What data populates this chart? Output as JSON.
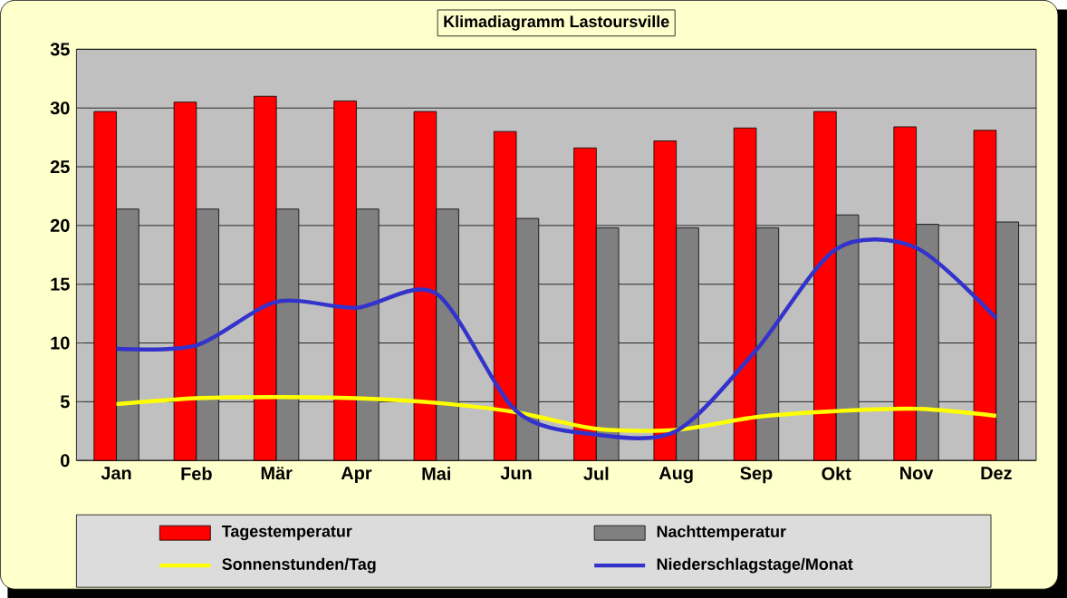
{
  "chart_data": {
    "type": "bar",
    "title": "Klimadiagramm Lastoursville",
    "categories": [
      "Jan",
      "Feb",
      "Mär",
      "Apr",
      "Mai",
      "Jun",
      "Jul",
      "Aug",
      "Sep",
      "Okt",
      "Nov",
      "Dez"
    ],
    "series": [
      {
        "name": "Tagestemperatur",
        "color": "#ff0000",
        "values": [
          29.7,
          30.5,
          31.0,
          30.6,
          29.7,
          28.0,
          26.6,
          27.2,
          28.3,
          29.7,
          28.4,
          28.1
        ]
      },
      {
        "name": "Nachttemperatur",
        "color": "#808080",
        "values": [
          21.4,
          21.4,
          21.4,
          21.4,
          21.4,
          20.6,
          19.8,
          19.8,
          19.8,
          20.9,
          20.1,
          20.3
        ]
      },
      {
        "name": "Sonnenstunden/Tag",
        "type": "line",
        "color": "#ffff00",
        "values": [
          4.8,
          5.3,
          5.4,
          5.3,
          4.9,
          4.1,
          2.7,
          2.6,
          3.7,
          4.2,
          4.4,
          3.8
        ]
      },
      {
        "name": "Niederschlagstage/Monat",
        "type": "line",
        "color": "#3333cc",
        "values": [
          9.5,
          9.8,
          13.5,
          13.0,
          14.2,
          4.2,
          2.2,
          2.5,
          9.4,
          18.0,
          18.1,
          12.1
        ]
      }
    ],
    "ylim": [
      0,
      35
    ],
    "yticks": [
      0,
      5,
      10,
      15,
      20,
      25,
      30,
      35
    ],
    "grid": "y",
    "legend": "bottom"
  }
}
